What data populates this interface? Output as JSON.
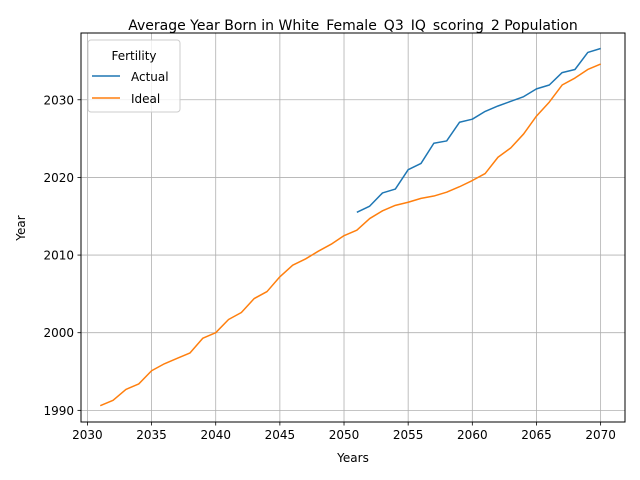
{
  "chart_data": {
    "type": "line",
    "title": "Average Year Born in White_Female_Q3_IQ_scoring_2 Population",
    "xlabel": "Years",
    "ylabel": "Year",
    "xlim": [
      2029.5,
      2071.9
    ],
    "ylim": [
      1988.5,
      2038.6
    ],
    "xticks": [
      2030,
      2035,
      2040,
      2045,
      2050,
      2055,
      2060,
      2065,
      2070
    ],
    "yticks": [
      1990,
      2000,
      2010,
      2020,
      2030
    ],
    "grid": true,
    "legend": {
      "title": "Fertility",
      "position": "top-left"
    },
    "series": [
      {
        "name": "Actual",
        "color": "#1f77b4",
        "x": [
          2051,
          2052,
          2053,
          2054,
          2055,
          2056,
          2057,
          2058,
          2059,
          2060,
          2061,
          2062,
          2063,
          2064,
          2065,
          2066,
          2067,
          2068,
          2069,
          2070
        ],
        "y": [
          2015.5,
          2016.3,
          2018.0,
          2018.5,
          2021.0,
          2021.8,
          2024.4,
          2024.7,
          2027.1,
          2027.5,
          2028.5,
          2029.2,
          2029.8,
          2030.4,
          2031.4,
          2031.9,
          2033.5,
          2033.9,
          2036.1,
          2036.6
        ]
      },
      {
        "name": "Ideal",
        "color": "#ff7f0e",
        "x": [
          2031,
          2032,
          2033,
          2034,
          2035,
          2036,
          2037,
          2038,
          2039,
          2040,
          2041,
          2042,
          2043,
          2044,
          2045,
          2046,
          2047,
          2048,
          2049,
          2050,
          2051,
          2052,
          2053,
          2054,
          2055,
          2056,
          2057,
          2058,
          2059,
          2060,
          2061,
          2062,
          2063,
          2064,
          2065,
          2066,
          2067,
          2068,
          2069,
          2070
        ],
        "y": [
          1990.6,
          1991.3,
          1992.7,
          1993.4,
          1995.1,
          1996.0,
          1996.7,
          1997.4,
          1999.3,
          2000.0,
          2001.7,
          2002.6,
          2004.4,
          2005.3,
          2007.2,
          2008.7,
          2009.5,
          2010.5,
          2011.4,
          2012.5,
          2013.2,
          2014.7,
          2015.7,
          2016.4,
          2016.8,
          2017.3,
          2017.6,
          2018.1,
          2018.8,
          2019.6,
          2020.5,
          2022.6,
          2023.8,
          2025.6,
          2027.9,
          2029.7,
          2031.9,
          2032.8,
          2033.9,
          2034.6
        ]
      }
    ]
  }
}
